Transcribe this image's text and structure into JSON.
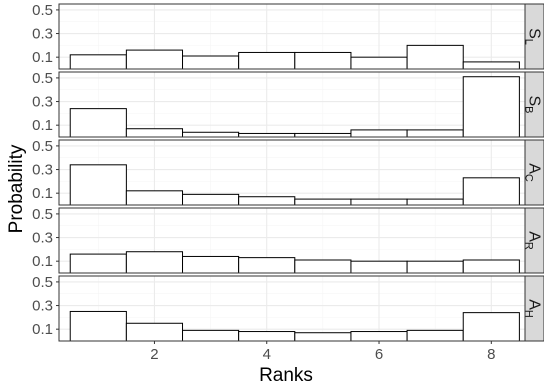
{
  "chart_data": {
    "type": "bar",
    "xlabel": "Ranks",
    "ylabel": "Probability",
    "x_ticks": [
      2,
      4,
      6,
      8
    ],
    "y_ticks": [
      0.1,
      0.3,
      0.5
    ],
    "y_tick_labels": [
      "0.1",
      "0.3",
      "0.5"
    ],
    "x_tick_labels": [
      "2",
      "4",
      "6",
      "8"
    ],
    "xlim": [
      0.3,
      8.6
    ],
    "ylim": [
      0,
      0.55
    ],
    "grid": true,
    "categories": [
      1,
      2,
      3,
      4,
      5,
      6,
      7,
      8
    ],
    "panels": [
      {
        "strip": "S",
        "strip_sub": "L",
        "values": [
          0.12,
          0.16,
          0.11,
          0.14,
          0.14,
          0.1,
          0.2,
          0.06
        ]
      },
      {
        "strip": "S",
        "strip_sub": "B",
        "values": [
          0.24,
          0.07,
          0.04,
          0.03,
          0.03,
          0.06,
          0.06,
          0.51
        ]
      },
      {
        "strip": "A",
        "strip_sub": "C",
        "values": [
          0.34,
          0.12,
          0.09,
          0.07,
          0.05,
          0.05,
          0.05,
          0.23
        ]
      },
      {
        "strip": "A",
        "strip_sub": "R",
        "values": [
          0.16,
          0.18,
          0.14,
          0.13,
          0.11,
          0.1,
          0.1,
          0.11
        ]
      },
      {
        "strip": "A",
        "strip_sub": "H",
        "values": [
          0.25,
          0.15,
          0.09,
          0.08,
          0.07,
          0.08,
          0.09,
          0.24
        ]
      }
    ],
    "colors": {
      "bar_fill": "#ffffff",
      "bar_stroke": "#000000",
      "grid_major": "#ebebeb",
      "grid_minor": "#f5f5f5",
      "strip_fill": "#d9d9d9",
      "panel_border": "#333333"
    }
  }
}
